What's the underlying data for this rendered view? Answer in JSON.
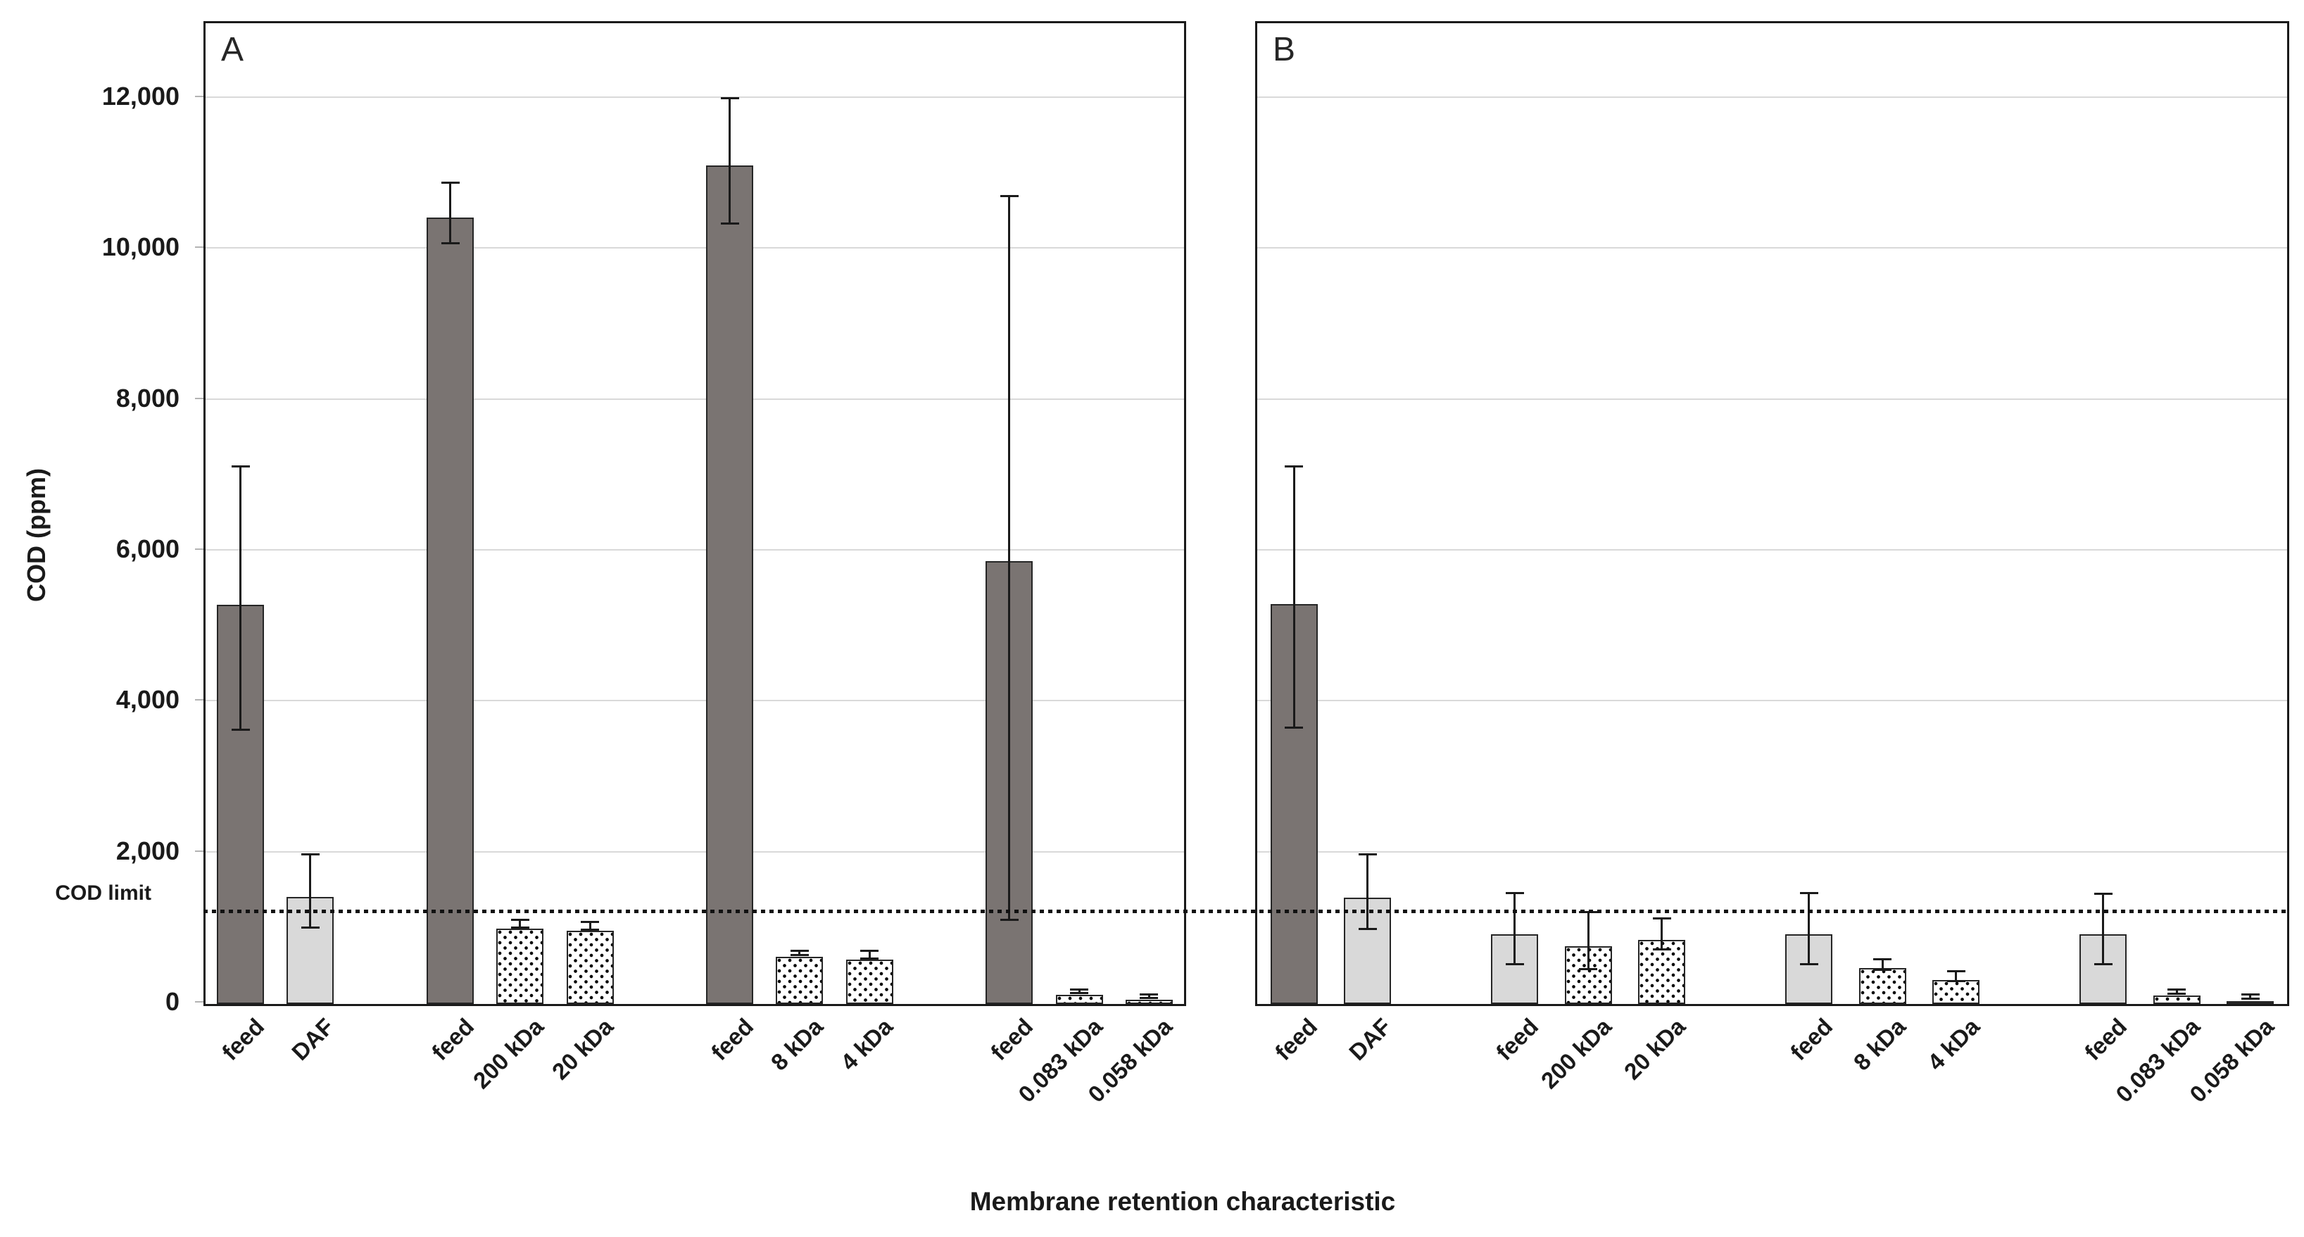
{
  "figure": {
    "y_axis_title": "COD (ppm)",
    "x_axis_title": "Membrane retention characteristic",
    "cod_limit_label": "COD limit"
  },
  "colors": {
    "feed_dark": "#7a7472",
    "light_fill": "#d9d9d9",
    "dotted_fill": "#ffffff",
    "dot_color": "#111111",
    "gridline": "#d9d9d9",
    "axis": "#1a1a1a"
  },
  "chart_data": [
    {
      "panel": "A",
      "type": "bar",
      "title": "",
      "xlabel": "Membrane retention characteristic",
      "ylabel": "COD (ppm)",
      "ylim": [
        0,
        13000
      ],
      "yticks": [
        0,
        2000,
        4000,
        6000,
        8000,
        10000,
        12000
      ],
      "grid": true,
      "legend_position": "none",
      "cod_limit_value": 1200,
      "categories": [
        "feed",
        "DAF",
        "feed",
        "200 kDa",
        "20 kDa",
        "feed",
        "8 kDa",
        "4 kDa",
        "feed",
        "0.083 kDa",
        "0.058 kDa"
      ],
      "values": [
        5320,
        1450,
        10450,
        1030,
        1000,
        11140,
        650,
        620,
        5900,
        150,
        80
      ],
      "error_low": [
        3600,
        980,
        10050,
        980,
        950,
        10310,
        620,
        570,
        1080,
        110,
        50
      ],
      "error_high": [
        7100,
        1960,
        10860,
        1090,
        1060,
        11980,
        680,
        680,
        10680,
        170,
        105
      ],
      "bar_styles": [
        "dark",
        "light",
        "dark",
        "dotted",
        "dotted",
        "dark",
        "dotted",
        "dotted",
        "dark",
        "dotted",
        "dotted"
      ]
    },
    {
      "panel": "B",
      "type": "bar",
      "title": "",
      "xlabel": "Membrane retention characteristic",
      "ylabel": "COD (ppm)",
      "ylim": [
        0,
        13000
      ],
      "yticks": [
        0,
        2000,
        4000,
        6000,
        8000,
        10000,
        12000
      ],
      "grid": true,
      "legend_position": "none",
      "cod_limit_value": 1200,
      "categories": [
        "feed",
        "DAF",
        "feed",
        "200 kDa",
        "20 kDa",
        "feed",
        "8 kDa",
        "4 kDa",
        "feed",
        "0.083 kDa",
        "0.058 kDa"
      ],
      "values": [
        5330,
        1440,
        950,
        790,
        880,
        950,
        500,
        350,
        950,
        140,
        70
      ],
      "error_low": [
        3630,
        960,
        490,
        430,
        690,
        490,
        420,
        270,
        490,
        100,
        40
      ],
      "error_high": [
        7100,
        1960,
        1450,
        1190,
        1115,
        1450,
        570,
        410,
        1440,
        170,
        100
      ],
      "bar_styles": [
        "dark",
        "light",
        "light",
        "dotted",
        "dotted",
        "light",
        "dotted",
        "dotted",
        "light",
        "dotted",
        "dotted"
      ]
    }
  ]
}
